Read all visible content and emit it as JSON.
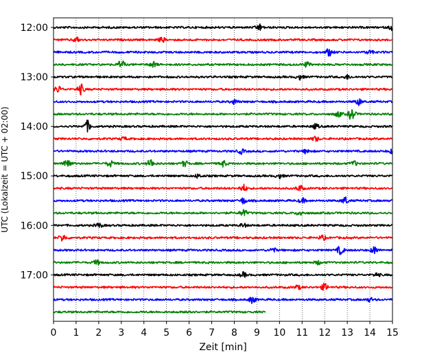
{
  "chart_data": {
    "type": "line",
    "title": "",
    "xlabel": "Zeit  [min]",
    "ylabel": "UTC (Lokalzeit = UTC + 02:00)",
    "xlim": [
      0,
      15
    ],
    "x_ticks": [
      "0",
      "1",
      "2",
      "3",
      "4",
      "5",
      "6",
      "7",
      "8",
      "9",
      "10",
      "11",
      "12",
      "13",
      "14",
      "15"
    ],
    "y_tick_labels": [
      {
        "label": "12:00",
        "row": 0
      },
      {
        "label": "13:00",
        "row": 4
      },
      {
        "label": "14:00",
        "row": 8
      },
      {
        "label": "15:00",
        "row": 12
      },
      {
        "label": "16:00",
        "row": 16
      },
      {
        "label": "17:00",
        "row": 20
      }
    ],
    "row_interval_minutes": 15,
    "grid": "vertical dotted lines at each minute",
    "colors": [
      "#000000",
      "#ff0000",
      "#0000ff",
      "#008000"
    ],
    "traces": [
      {
        "start": "12:00",
        "color": "#000000",
        "end_min": 15,
        "events": [
          {
            "t": 9.1,
            "amp": 1.4
          },
          {
            "t": 15.0,
            "amp": 1.2
          }
        ]
      },
      {
        "start": "12:15",
        "color": "#ff0000",
        "end_min": 15,
        "events": [
          {
            "t": 1.0,
            "amp": 1.1
          },
          {
            "t": 4.8,
            "amp": 1.0
          }
        ]
      },
      {
        "start": "12:30",
        "color": "#0000ff",
        "end_min": 15,
        "events": [
          {
            "t": 12.2,
            "amp": 1.6
          },
          {
            "t": 14.0,
            "amp": 0.8
          }
        ]
      },
      {
        "start": "12:45",
        "color": "#008000",
        "end_min": 15,
        "events": [
          {
            "t": 3.0,
            "amp": 1.8
          },
          {
            "t": 4.4,
            "amp": 1.2
          },
          {
            "t": 11.2,
            "amp": 1.0
          }
        ]
      },
      {
        "start": "13:00",
        "color": "#000000",
        "end_min": 15,
        "events": [
          {
            "t": 10.9,
            "amp": 1.1
          },
          {
            "t": 13.0,
            "amp": 0.8
          }
        ]
      },
      {
        "start": "13:15",
        "color": "#ff0000",
        "end_min": 15,
        "events": [
          {
            "t": 0.2,
            "amp": 1.4
          },
          {
            "t": 1.2,
            "amp": 2.2
          }
        ]
      },
      {
        "start": "13:30",
        "color": "#0000ff",
        "end_min": 15,
        "events": [
          {
            "t": 8.0,
            "amp": 1.0
          },
          {
            "t": 13.5,
            "amp": 1.4
          }
        ]
      },
      {
        "start": "13:45",
        "color": "#008000",
        "end_min": 15,
        "events": [
          {
            "t": 13.2,
            "amp": 2.6
          },
          {
            "t": 12.6,
            "amp": 1.2
          }
        ]
      },
      {
        "start": "14:00",
        "color": "#000000",
        "end_min": 15,
        "events": [
          {
            "t": 1.5,
            "amp": 2.4
          },
          {
            "t": 11.6,
            "amp": 1.0
          }
        ]
      },
      {
        "start": "14:15",
        "color": "#ff0000",
        "end_min": 15,
        "events": [
          {
            "t": 11.6,
            "amp": 1.0
          },
          {
            "t": 3.1,
            "amp": 0.7
          }
        ]
      },
      {
        "start": "14:30",
        "color": "#0000ff",
        "end_min": 15,
        "events": [
          {
            "t": 8.3,
            "amp": 1.0
          },
          {
            "t": 11.2,
            "amp": 1.0
          },
          {
            "t": 15.0,
            "amp": 1.0
          }
        ]
      },
      {
        "start": "14:45",
        "color": "#008000",
        "end_min": 15,
        "events": [
          {
            "t": 0.6,
            "amp": 2.8
          },
          {
            "t": 2.5,
            "amp": 1.3
          },
          {
            "t": 4.3,
            "amp": 1.8
          },
          {
            "t": 5.8,
            "amp": 1.2
          },
          {
            "t": 7.5,
            "amp": 1.3
          },
          {
            "t": 13.3,
            "amp": 1.0
          }
        ]
      },
      {
        "start": "15:00",
        "color": "#000000",
        "end_min": 15,
        "events": [
          {
            "t": 10.0,
            "amp": 1.0
          },
          {
            "t": 6.4,
            "amp": 0.8
          }
        ]
      },
      {
        "start": "15:15",
        "color": "#ff0000",
        "end_min": 15,
        "events": [
          {
            "t": 8.4,
            "amp": 1.6
          },
          {
            "t": 10.9,
            "amp": 1.3
          }
        ]
      },
      {
        "start": "15:30",
        "color": "#0000ff",
        "end_min": 15,
        "events": [
          {
            "t": 8.4,
            "amp": 1.3
          },
          {
            "t": 11.0,
            "amp": 1.0
          },
          {
            "t": 12.9,
            "amp": 1.5
          }
        ]
      },
      {
        "start": "15:45",
        "color": "#008000",
        "end_min": 15,
        "events": [
          {
            "t": 8.4,
            "amp": 1.6
          },
          {
            "t": 10.9,
            "amp": 1.0
          }
        ]
      },
      {
        "start": "16:00",
        "color": "#000000",
        "end_min": 15,
        "events": [
          {
            "t": 2.0,
            "amp": 1.0
          },
          {
            "t": 8.4,
            "amp": 0.8
          }
        ]
      },
      {
        "start": "16:15",
        "color": "#ff0000",
        "end_min": 15,
        "events": [
          {
            "t": 0.4,
            "amp": 1.5
          },
          {
            "t": 11.9,
            "amp": 1.0
          }
        ]
      },
      {
        "start": "16:30",
        "color": "#0000ff",
        "end_min": 15,
        "events": [
          {
            "t": 12.7,
            "amp": 1.8
          },
          {
            "t": 14.2,
            "amp": 1.6
          },
          {
            "t": 9.7,
            "amp": 1.0
          }
        ]
      },
      {
        "start": "16:45",
        "color": "#008000",
        "end_min": 15,
        "events": [
          {
            "t": 1.9,
            "amp": 1.0
          },
          {
            "t": 11.7,
            "amp": 0.8
          }
        ]
      },
      {
        "start": "17:00",
        "color": "#000000",
        "end_min": 15,
        "events": [
          {
            "t": 8.4,
            "amp": 1.0
          },
          {
            "t": 14.3,
            "amp": 0.8
          }
        ]
      },
      {
        "start": "17:15",
        "color": "#ff0000",
        "end_min": 15,
        "events": [
          {
            "t": 12.0,
            "amp": 1.5
          },
          {
            "t": 10.8,
            "amp": 0.8
          }
        ]
      },
      {
        "start": "17:30",
        "color": "#0000ff",
        "end_min": 15,
        "events": [
          {
            "t": 8.8,
            "amp": 1.4
          },
          {
            "t": 14.0,
            "amp": 0.8
          }
        ]
      },
      {
        "start": "17:45",
        "color": "#008000",
        "end_min": 9.4,
        "events": [
          {
            "t": 6.0,
            "amp": 0.7
          }
        ]
      }
    ]
  }
}
